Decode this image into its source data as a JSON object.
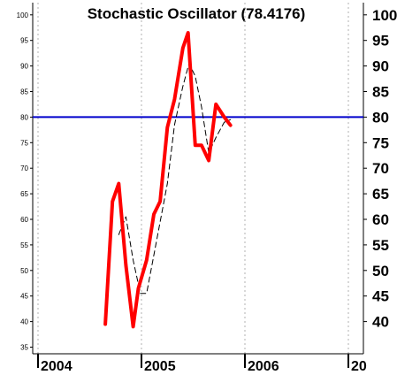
{
  "chart_data": {
    "type": "line",
    "title": "Stochastic Oscillator (78.4176)",
    "left_ticks": [
      "35",
      "40",
      "45",
      "50",
      "55",
      "60",
      "65",
      "70",
      "75",
      "80",
      "85",
      "90",
      "95",
      "100"
    ],
    "right_ticks": [
      "40",
      "45",
      "50",
      "55",
      "60",
      "65",
      "70",
      "75",
      "80",
      "85",
      "90",
      "95",
      "100"
    ],
    "x_ticks": [
      "2004",
      "2005",
      "2006",
      "20"
    ],
    "ylim": [
      33,
      102
    ],
    "reference_line": {
      "value": 80,
      "color": "#0000cc"
    },
    "series": [
      {
        "color": "#ff0000",
        "points": [
          [
            2004.65,
            39.5
          ],
          [
            2004.72,
            63.5
          ],
          [
            2004.78,
            67.0
          ],
          [
            2004.85,
            51.0
          ],
          [
            2004.92,
            39.0
          ],
          [
            2004.97,
            46.5
          ],
          [
            2005.05,
            52.0
          ],
          [
            2005.12,
            61.0
          ],
          [
            2005.18,
            63.5
          ],
          [
            2005.25,
            78.0
          ],
          [
            2005.32,
            83.5
          ],
          [
            2005.4,
            93.5
          ],
          [
            2005.45,
            96.5
          ],
          [
            2005.52,
            74.5
          ],
          [
            2005.58,
            74.5
          ],
          [
            2005.65,
            71.5
          ],
          [
            2005.72,
            82.5
          ],
          [
            2005.8,
            80.0
          ],
          [
            2005.86,
            78.4
          ]
        ]
      },
      {
        "color": "#000000",
        "dashed": true,
        "points": [
          [
            2004.78,
            57.0
          ],
          [
            2004.85,
            60.5
          ],
          [
            2004.92,
            52.0
          ],
          [
            2004.99,
            45.5
          ],
          [
            2005.05,
            45.5
          ],
          [
            2005.12,
            53.0
          ],
          [
            2005.25,
            67.0
          ],
          [
            2005.32,
            78.5
          ],
          [
            2005.4,
            86.0
          ],
          [
            2005.46,
            90.5
          ],
          [
            2005.52,
            88.0
          ],
          [
            2005.58,
            82.0
          ],
          [
            2005.65,
            73.0
          ],
          [
            2005.72,
            76.0
          ],
          [
            2005.8,
            79.0
          ],
          [
            2005.86,
            79.5
          ]
        ]
      }
    ]
  }
}
